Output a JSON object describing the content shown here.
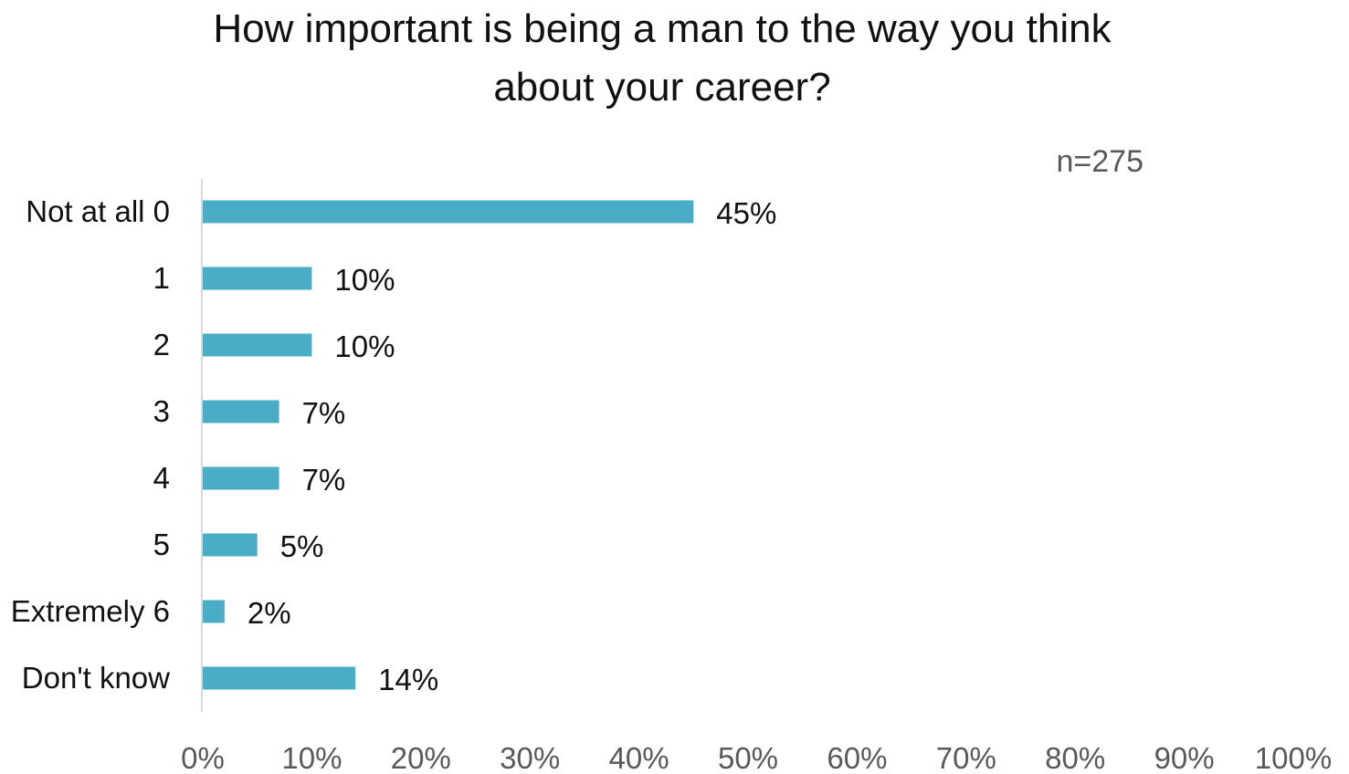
{
  "chart_data": {
    "type": "bar",
    "orientation": "horizontal",
    "title_lines": [
      "How important is being a man to the way you think",
      "about your career?"
    ],
    "annotation": "n=275",
    "categories": [
      "Not at all 0",
      "1",
      "2",
      "3",
      "4",
      "5",
      "Extremely 6",
      "Don't know"
    ],
    "values": [
      45,
      10,
      10,
      7,
      7,
      5,
      2,
      14
    ],
    "value_labels": [
      "45%",
      "10%",
      "10%",
      "7%",
      "7%",
      "5%",
      "2%",
      "14%"
    ],
    "xlim": [
      0,
      100
    ],
    "x_ticks": [
      "0%",
      "10%",
      "20%",
      "30%",
      "40%",
      "50%",
      "60%",
      "70%",
      "80%",
      "90%",
      "100%"
    ],
    "grid": false,
    "legend": "none",
    "bar_color": "#4BACC6",
    "axis_color": "#D9D9D9"
  }
}
